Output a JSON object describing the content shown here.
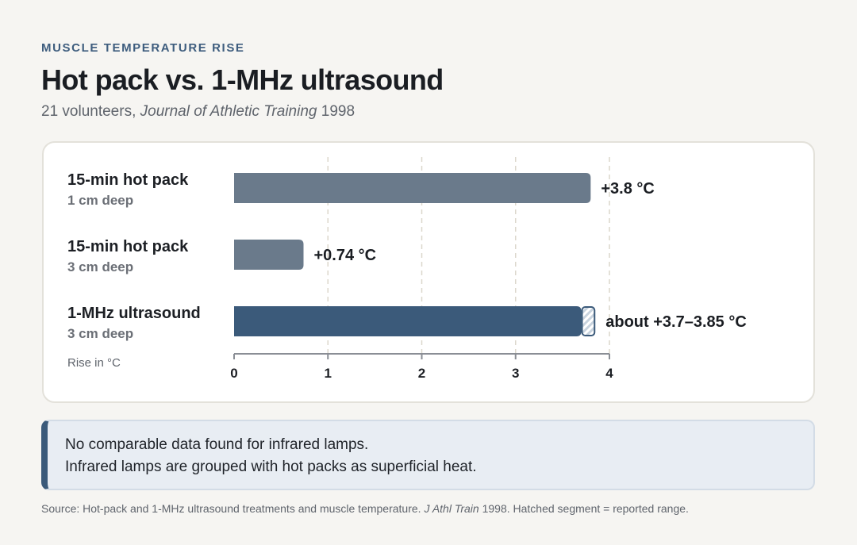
{
  "header": {
    "eyebrow": "MUSCLE TEMPERATURE RISE",
    "title": "Hot pack vs. 1-MHz ultrasound",
    "subtitle_prefix": "21 volunteers, ",
    "subtitle_journal": "Journal of Athletic Training",
    "subtitle_year": " 1998"
  },
  "chart_data": {
    "type": "bar",
    "orientation": "horizontal",
    "xlabel": "Rise in °C",
    "xlim": [
      0,
      4
    ],
    "xticks": [
      "0",
      "1",
      "2",
      "3",
      "4"
    ],
    "grid": true,
    "bars": [
      {
        "label": "15-min hot pack",
        "sublabel": "1 cm deep",
        "value": 3.8,
        "value_label": "+3.8 °C",
        "color": "#6a7a8b"
      },
      {
        "label": "15-min hot pack",
        "sublabel": "3 cm deep",
        "value": 0.74,
        "value_label": "+0.74 °C",
        "color": "#6a7a8b"
      },
      {
        "label": "1-MHz ultrasound",
        "sublabel": "3 cm deep",
        "value": 3.7,
        "range": [
          3.7,
          3.85
        ],
        "value_label": "about +3.7–3.85 °C",
        "color": "#3b5a7a"
      }
    ]
  },
  "note": {
    "line1": "No comparable data found for infrared lamps.",
    "line2": "Infrared lamps are grouped with hot packs as superficial heat."
  },
  "source": {
    "prefix": "Source: Hot-pack and 1-MHz ultrasound treatments and muscle temperature. ",
    "journal": "J Athl Train",
    "suffix": " 1998. Hatched segment = reported range."
  },
  "colors": {
    "accent": "#3e5d7e",
    "hot_pack_bar": "#6a7a8b",
    "ultrasound_bar": "#3b5a7a",
    "note_bg": "#e8edf3"
  }
}
